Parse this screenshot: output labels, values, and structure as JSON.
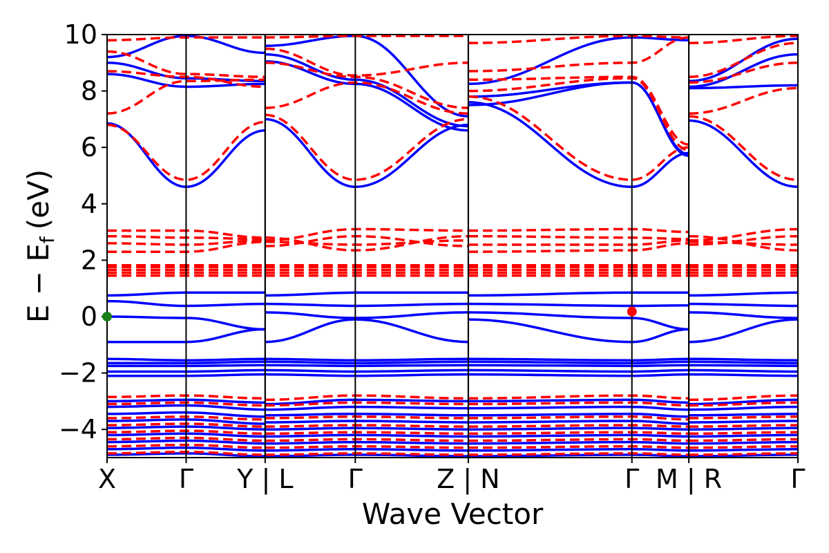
{
  "chart_data": {
    "type": "line",
    "xlabel": "Wave Vector",
    "ylabel_main": "E − E",
    "ylabel_sub": "f",
    "ylabel_unit": "(eV)",
    "ylim": [
      -5,
      10
    ],
    "yticks": [
      10,
      8,
      6,
      4,
      2,
      0,
      -2,
      -4
    ],
    "ytick_labels": [
      "10",
      "8",
      "6",
      "4",
      "2",
      "0",
      "−2",
      "−4"
    ],
    "grid": false,
    "colors": {
      "blue_series": "#0000ff",
      "red_series": "#ff0000",
      "frame": "#000000",
      "marker_green": "#1a7f1a",
      "marker_red": "#ff0000"
    },
    "segments": [
      {
        "labels": [
          "X",
          "Γ",
          "Y"
        ],
        "lengths": [
          1.0,
          1.0
        ]
      },
      {
        "labels": [
          "L",
          "Γ",
          "Z"
        ],
        "lengths": [
          1.14,
          1.43
        ]
      },
      {
        "labels": [
          "N",
          "Γ",
          "M"
        ],
        "lengths": [
          2.07,
          0.72
        ]
      },
      {
        "labels": [
          "R",
          "Γ"
        ],
        "lengths": [
          1.38
        ]
      }
    ],
    "bottom_tick_labels": [
      "X",
      "Γ",
      "Y | L",
      "Γ",
      "Z | N",
      "Γ",
      "M | R",
      "Γ"
    ],
    "series": [
      {
        "style": "solid",
        "color": "blue",
        "bands": [
          [
            -0.9,
            -0.9,
            -0.45,
            -0.9,
            -0.1,
            -0.9,
            -0.1,
            -0.9,
            -0.45,
            -0.9,
            -0.1,
            -0.9
          ],
          [
            0.0,
            -0.05,
            -0.45,
            0.15,
            -0.05,
            0.15,
            0.15,
            -0.05,
            -0.45,
            0.15,
            -0.05,
            0.15
          ],
          [
            0.55,
            0.38,
            0.45,
            0.45,
            0.38,
            0.45,
            0.45,
            0.38,
            0.4,
            0.45,
            0.38,
            0.45
          ],
          [
            0.75,
            0.85,
            0.85,
            0.75,
            0.85,
            0.85,
            0.75,
            0.85,
            0.85,
            0.75,
            0.85,
            0.85
          ],
          [
            -1.5,
            -1.55,
            -1.5,
            -1.5,
            -1.55,
            -1.5,
            -1.5,
            -1.55,
            -1.5,
            -1.5,
            -1.55,
            -1.5
          ],
          [
            -1.65,
            -1.65,
            -1.6,
            -1.6,
            -1.65,
            -1.6,
            -1.6,
            -1.65,
            -1.6,
            -1.6,
            -1.65,
            -1.6
          ],
          [
            -1.75,
            -1.75,
            -1.72,
            -1.72,
            -1.75,
            -1.72,
            -1.72,
            -1.75,
            -1.72,
            -1.72,
            -1.75,
            -1.72
          ],
          [
            -1.95,
            -1.95,
            -1.9,
            -1.9,
            -1.95,
            -1.9,
            -1.9,
            -1.95,
            -1.9,
            -1.9,
            -1.95,
            -1.9
          ],
          [
            -2.1,
            -2.1,
            -2.05,
            -2.05,
            -2.1,
            -2.05,
            -2.05,
            -2.1,
            -2.05,
            -2.05,
            -2.1,
            -2.05
          ],
          [
            6.85,
            4.6,
            6.6,
            7.0,
            4.6,
            6.8,
            7.6,
            4.6,
            5.8,
            6.95,
            4.6,
            4.6
          ],
          [
            8.6,
            8.15,
            8.25,
            9.05,
            8.25,
            6.6,
            7.5,
            8.3,
            5.7,
            8.1,
            8.2,
            8.2
          ],
          [
            9.0,
            8.45,
            8.35,
            9.3,
            8.4,
            6.75,
            7.8,
            8.3,
            5.75,
            8.15,
            9.3,
            9.3
          ],
          [
            9.2,
            9.95,
            9.35,
            9.6,
            9.95,
            7.1,
            8.25,
            9.9,
            9.8,
            8.35,
            9.85,
            9.85
          ],
          [
            -3.0,
            -2.95,
            -3.05,
            -3.1,
            -2.95,
            -3.0,
            -3.0,
            -2.95,
            -3.05,
            -3.1,
            -2.95,
            -3.0
          ],
          [
            -3.2,
            -3.15,
            -3.3,
            -3.3,
            -3.2,
            -3.25,
            -3.25,
            -3.2,
            -3.3,
            -3.3,
            -3.2,
            -3.25
          ],
          [
            -3.45,
            -3.4,
            -3.55,
            -3.5,
            -3.45,
            -3.5,
            -3.5,
            -3.45,
            -3.55,
            -3.5,
            -3.45,
            -3.5
          ],
          [
            -3.7,
            -3.65,
            -3.8,
            -3.75,
            -3.7,
            -3.75,
            -3.75,
            -3.7,
            -3.8,
            -3.75,
            -3.7,
            -3.75
          ],
          [
            -3.95,
            -3.9,
            -4.0,
            -4.0,
            -3.95,
            -4.0,
            -4.0,
            -3.95,
            -4.0,
            -4.0,
            -3.95,
            -4.0
          ],
          [
            -4.2,
            -4.15,
            -4.25,
            -4.25,
            -4.2,
            -4.25,
            -4.25,
            -4.2,
            -4.25,
            -4.25,
            -4.2,
            -4.25
          ],
          [
            -4.45,
            -4.4,
            -4.5,
            -4.5,
            -4.45,
            -4.5,
            -4.5,
            -4.45,
            -4.5,
            -4.5,
            -4.45,
            -4.5
          ],
          [
            -4.7,
            -4.65,
            -4.75,
            -4.75,
            -4.7,
            -4.75,
            -4.75,
            -4.7,
            -4.75,
            -4.75,
            -4.7,
            -4.75
          ],
          [
            -4.9,
            -4.85,
            -4.95,
            -4.95,
            -4.9,
            -4.95,
            -4.95,
            -4.9,
            -4.95,
            -4.95,
            -4.9,
            -4.95
          ]
        ]
      },
      {
        "style": "dashed",
        "color": "red",
        "bands": [
          [
            1.45,
            1.45,
            1.45,
            1.45,
            1.45,
            1.45,
            1.45,
            1.45,
            1.45,
            1.45,
            1.45,
            1.45
          ],
          [
            1.55,
            1.55,
            1.55,
            1.55,
            1.55,
            1.55,
            1.55,
            1.55,
            1.55,
            1.55,
            1.55,
            1.55
          ],
          [
            1.65,
            1.65,
            1.65,
            1.65,
            1.65,
            1.65,
            1.65,
            1.65,
            1.65,
            1.65,
            1.65,
            1.65
          ],
          [
            1.75,
            1.75,
            1.75,
            1.75,
            1.75,
            1.75,
            1.75,
            1.75,
            1.75,
            1.75,
            1.75,
            1.75
          ],
          [
            1.82,
            1.82,
            1.82,
            1.82,
            1.82,
            1.82,
            1.82,
            1.82,
            1.82,
            1.82,
            1.82,
            1.82
          ],
          [
            2.3,
            2.3,
            2.65,
            2.8,
            2.35,
            2.85,
            2.3,
            2.35,
            2.6,
            2.85,
            2.35,
            2.35
          ],
          [
            2.6,
            2.55,
            2.7,
            2.65,
            2.55,
            2.7,
            2.55,
            2.55,
            2.7,
            2.65,
            2.55,
            2.55
          ],
          [
            2.85,
            2.8,
            2.75,
            2.5,
            2.85,
            2.5,
            2.85,
            2.8,
            2.75,
            2.55,
            2.85,
            2.85
          ],
          [
            3.05,
            3.05,
            2.8,
            2.7,
            3.1,
            3.05,
            3.05,
            3.1,
            3.0,
            2.7,
            3.1,
            3.1
          ],
          [
            6.8,
            4.85,
            6.9,
            7.15,
            4.85,
            7.0,
            7.8,
            4.85,
            6.0,
            7.1,
            4.85,
            4.85
          ],
          [
            7.2,
            8.35,
            8.4,
            7.4,
            8.3,
            7.2,
            8.0,
            8.45,
            5.9,
            7.2,
            8.1,
            8.1
          ],
          [
            8.7,
            8.5,
            8.15,
            9.0,
            8.5,
            7.4,
            8.4,
            8.5,
            6.1,
            8.3,
            9.0,
            9.0
          ],
          [
            9.4,
            8.6,
            8.5,
            9.5,
            8.55,
            9.0,
            8.7,
            9.0,
            9.9,
            8.5,
            9.7,
            9.7
          ],
          [
            9.8,
            9.9,
            9.9,
            9.9,
            9.95,
            9.95,
            9.7,
            9.95,
            9.9,
            9.7,
            9.95,
            9.95
          ],
          [
            -2.85,
            -2.8,
            -2.9,
            -2.95,
            -2.8,
            -2.9,
            -2.9,
            -2.8,
            -2.9,
            -2.95,
            -2.8,
            -2.9
          ],
          [
            -3.1,
            -3.05,
            -3.15,
            -3.15,
            -3.05,
            -3.1,
            -3.1,
            -3.05,
            -3.15,
            -3.15,
            -3.05,
            -3.1
          ],
          [
            -3.6,
            -3.55,
            -3.65,
            -3.6,
            -3.55,
            -3.6,
            -3.6,
            -3.55,
            -3.65,
            -3.6,
            -3.55,
            -3.6
          ],
          [
            -3.85,
            -3.8,
            -3.9,
            -3.9,
            -3.85,
            -3.9,
            -3.9,
            -3.85,
            -3.9,
            -3.9,
            -3.85,
            -3.9
          ],
          [
            -4.1,
            -4.05,
            -4.15,
            -4.15,
            -4.1,
            -4.15,
            -4.15,
            -4.1,
            -4.15,
            -4.15,
            -4.1,
            -4.15
          ],
          [
            -4.35,
            -4.3,
            -4.4,
            -4.4,
            -4.35,
            -4.4,
            -4.4,
            -4.35,
            -4.4,
            -4.4,
            -4.35,
            -4.4
          ],
          [
            -4.6,
            -4.55,
            -4.65,
            -4.65,
            -4.6,
            -4.65,
            -4.65,
            -4.6,
            -4.65,
            -4.65,
            -4.6,
            -4.65
          ],
          [
            -4.85,
            -4.8,
            -4.9,
            -4.9,
            -4.85,
            -4.9,
            -4.9,
            -4.85,
            -4.9,
            -4.9,
            -4.85,
            -4.9
          ]
        ]
      }
    ],
    "markers": [
      {
        "at_label_index": 0,
        "energy": 0.0,
        "color": "green"
      },
      {
        "at_label_index": 5,
        "energy": 0.18,
        "color": "red"
      }
    ]
  }
}
